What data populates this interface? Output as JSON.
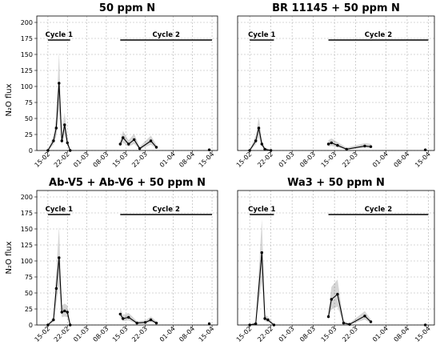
{
  "ylabel": "N₂O flux",
  "ylim": [
    0,
    210
  ],
  "yticks": [
    "0",
    "25",
    "50",
    "75",
    "100",
    "125",
    "150",
    "175",
    "200"
  ],
  "xticks": [
    "15-02",
    "22-02",
    "01-03",
    "08-03",
    "15-03",
    "22-03",
    "01-04",
    "08-04",
    "15-04"
  ],
  "cycles": [
    {
      "label": "Cycle 1",
      "start": "2021-02-15",
      "end": "2021-02-23"
    },
    {
      "label": "Cycle 2",
      "start": "2021-03-13",
      "end": "2021-04-15"
    }
  ],
  "chart_data": [
    {
      "type": "line",
      "title": "50 ppm N",
      "points": [
        {
          "x": "2021-02-15",
          "y": 0
        },
        {
          "x": "2021-02-17",
          "y": 15
        },
        {
          "x": "2021-02-18",
          "y": 35
        },
        {
          "x": "2021-02-19",
          "y": 105
        },
        {
          "x": "2021-02-20",
          "y": 15
        },
        {
          "x": "2021-02-21",
          "y": 40
        },
        {
          "x": "2021-02-22",
          "y": 12
        },
        {
          "x": "2021-02-23",
          "y": 0
        },
        {
          "x": "2021-03-13",
          "y": 10
        },
        {
          "x": "2021-03-14",
          "y": 20
        },
        {
          "x": "2021-03-16",
          "y": 10
        },
        {
          "x": "2021-03-18",
          "y": 17
        },
        {
          "x": "2021-03-20",
          "y": 3
        },
        {
          "x": "2021-03-24",
          "y": 15
        },
        {
          "x": "2021-03-26",
          "y": 5
        },
        {
          "x": "2021-04-14",
          "y": 1
        }
      ]
    },
    {
      "type": "line",
      "title": "BR 11145 + 50 ppm N",
      "points": [
        {
          "x": "2021-02-15",
          "y": 0
        },
        {
          "x": "2021-02-17",
          "y": 15
        },
        {
          "x": "2021-02-18",
          "y": 35
        },
        {
          "x": "2021-02-19",
          "y": 10
        },
        {
          "x": "2021-02-20",
          "y": 2
        },
        {
          "x": "2021-02-22",
          "y": 0
        },
        {
          "x": "2021-03-13",
          "y": 10
        },
        {
          "x": "2021-03-14",
          "y": 12
        },
        {
          "x": "2021-03-16",
          "y": 8
        },
        {
          "x": "2021-03-19",
          "y": 2
        },
        {
          "x": "2021-03-25",
          "y": 7
        },
        {
          "x": "2021-03-27",
          "y": 6
        },
        {
          "x": "2021-04-14",
          "y": 1
        }
      ]
    },
    {
      "type": "line",
      "title": "Ab-V5 + Ab-V6 + 50 ppm N",
      "points": [
        {
          "x": "2021-02-15",
          "y": 0
        },
        {
          "x": "2021-02-17",
          "y": 8
        },
        {
          "x": "2021-02-18",
          "y": 57
        },
        {
          "x": "2021-02-19",
          "y": 105
        },
        {
          "x": "2021-02-20",
          "y": 20
        },
        {
          "x": "2021-02-21",
          "y": 22
        },
        {
          "x": "2021-02-22",
          "y": 20
        },
        {
          "x": "2021-02-23",
          "y": 0
        },
        {
          "x": "2021-03-13",
          "y": 17
        },
        {
          "x": "2021-03-14",
          "y": 10
        },
        {
          "x": "2021-03-16",
          "y": 12
        },
        {
          "x": "2021-03-19",
          "y": 3
        },
        {
          "x": "2021-03-22",
          "y": 4
        },
        {
          "x": "2021-03-24",
          "y": 8
        },
        {
          "x": "2021-03-26",
          "y": 3
        },
        {
          "x": "2021-04-14",
          "y": 2
        }
      ]
    },
    {
      "type": "line",
      "title": "Wa3 + 50 ppm N",
      "points": [
        {
          "x": "2021-02-15",
          "y": 0
        },
        {
          "x": "2021-02-17",
          "y": 2
        },
        {
          "x": "2021-02-19",
          "y": 113
        },
        {
          "x": "2021-02-20",
          "y": 10
        },
        {
          "x": "2021-02-21",
          "y": 8
        },
        {
          "x": "2021-02-23",
          "y": 0
        },
        {
          "x": "2021-03-13",
          "y": 13
        },
        {
          "x": "2021-03-14",
          "y": 40
        },
        {
          "x": "2021-03-16",
          "y": 48
        },
        {
          "x": "2021-03-18",
          "y": 3
        },
        {
          "x": "2021-03-20",
          "y": 1
        },
        {
          "x": "2021-03-25",
          "y": 14
        },
        {
          "x": "2021-03-27",
          "y": 5
        },
        {
          "x": "2021-04-14",
          "y": 0
        }
      ]
    }
  ]
}
